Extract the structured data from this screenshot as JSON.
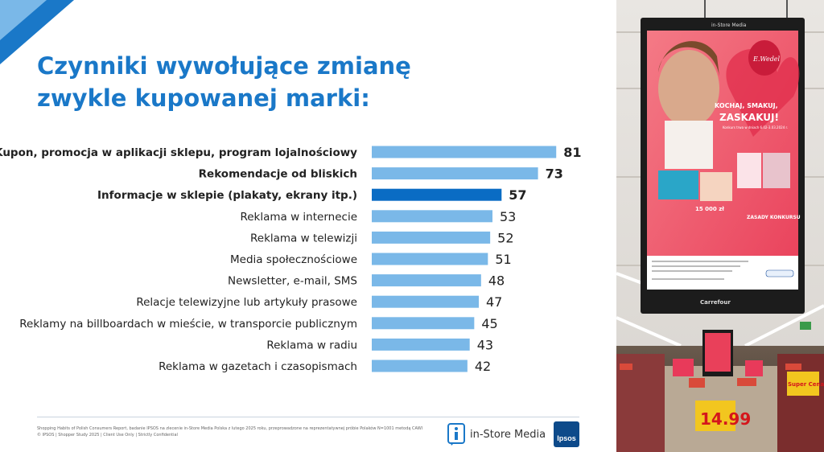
{
  "title": {
    "line1": "Czynniki wywołujące zmianę",
    "line2": "zwykle kupowanej marki:"
  },
  "colors": {
    "accent": "#1a78c8",
    "bar": "#7ab8e8",
    "bar_highlight": "#0a6cc4",
    "label_highlight": "#1a78c8"
  },
  "chart_data": {
    "type": "bar",
    "orientation": "horizontal",
    "xlim": [
      0,
      100
    ],
    "grid": false,
    "legend": "none",
    "categories": [
      "Kupon, promocja w aplikacji sklepu, program lojalnościowy",
      "Rekomendacje od bliskich",
      "Informacje w sklepie (plakaty, ekrany itp.)",
      "Reklama w internecie",
      "Reklama w telewizji",
      "Media społecznościowe",
      "Newsletter, e-mail, SMS",
      "Relacje telewizyjne lub artykuły prasowe",
      "Reklamy na billboardach w mieście, w transporcie publicznym",
      "Reklama w radiu",
      "Reklama w gazetach i czasopismach"
    ],
    "values": [
      81,
      73,
      57,
      53,
      52,
      51,
      48,
      47,
      45,
      43,
      42
    ],
    "bold_labels": [
      true,
      true,
      true,
      false,
      false,
      false,
      false,
      false,
      false,
      false,
      false
    ],
    "highlight": [
      false,
      false,
      true,
      false,
      false,
      false,
      false,
      false,
      false,
      false,
      false
    ]
  },
  "footnote": {
    "line1": "Shopping Habits of Polish Consumers Report, badanie IPSOS na zlecenie in-Store Media Polska z lutego 2025 roku, przeprowadzone na reprezentatywnej próbie Polaków N=1001 metodą CAWI",
    "line2": "© IPSOS | Shopper Study 2025 | Client Use Only | Strictly Confidential"
  },
  "logos": {
    "instore": "in-Store Media",
    "ipsos": "Ipsos"
  },
  "photo": {
    "screen_header": "in-Store Media",
    "brand": "E.Wedel",
    "headline1": "KOCHAJ, SMAKUJ,",
    "headline2": "ZASKAKUJ!",
    "dates": "Konkurs trwa w dniach 6.02-3.03.2024 r.",
    "prize_amount": "15 000 zł",
    "rules_title": "ZASADY KONKURSU",
    "store_name": "Carrefour",
    "price": "14.99",
    "shelf_sign": "Super Cena"
  }
}
